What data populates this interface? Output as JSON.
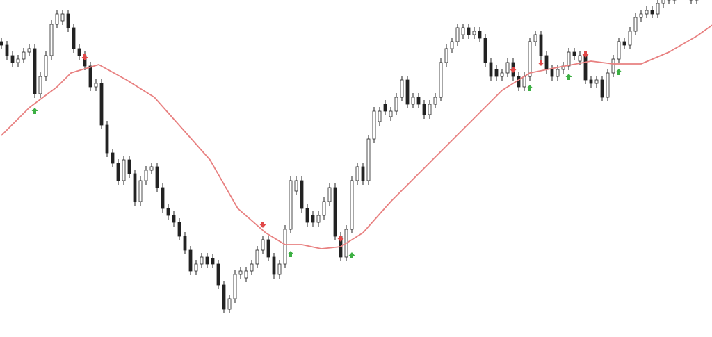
{
  "chart_data": {
    "type": "candlestick",
    "title": "",
    "xlabel": "",
    "ylabel": "",
    "ylim": [
      -5,
      480
    ],
    "grid": false,
    "colors": {
      "up_fill": "#ffffff",
      "down_fill": "#222222",
      "wick": "#222222",
      "ma": "#e88080",
      "buy": "#3cb043",
      "sell": "#e04848"
    },
    "open": [
      420,
      415,
      400,
      390,
      395,
      405,
      410,
      345,
      370,
      400,
      445,
      450,
      460,
      440,
      410,
      400,
      385,
      355,
      360,
      300,
      260,
      245,
      220,
      250,
      230,
      190,
      220,
      235,
      240,
      210,
      180,
      170,
      160,
      140,
      120,
      90,
      100,
      110,
      108,
      100,
      70,
      35,
      50,
      85,
      80,
      90,
      100,
      120,
      135,
      110,
      85,
      100,
      150,
      205,
      220,
      180,
      170,
      160,
      170,
      190,
      210,
      140,
      110,
      150,
      220,
      240,
      220,
      280,
      305,
      330,
      312,
      320,
      340,
      365,
      330,
      340,
      330,
      315,
      330,
      340,
      390,
      410,
      420,
      430,
      440,
      430,
      435,
      425,
      390,
      380,
      370,
      375,
      390,
      370,
      355,
      370,
      420,
      430,
      400,
      380,
      370,
      380,
      385,
      405,
      392,
      400,
      365,
      360,
      365,
      340,
      375,
      395,
      420,
      415,
      435,
      455,
      460,
      465,
      460,
      475,
      485,
      480,
      490,
      492,
      500,
      480
    ],
    "high": [
      426,
      421,
      406,
      401,
      411,
      416,
      416,
      376,
      406,
      451,
      466,
      466,
      466,
      446,
      416,
      406,
      391,
      366,
      366,
      306,
      266,
      251,
      256,
      256,
      236,
      226,
      241,
      246,
      246,
      216,
      186,
      176,
      166,
      146,
      126,
      106,
      116,
      116,
      114,
      106,
      76,
      56,
      91,
      96,
      96,
      106,
      126,
      141,
      141,
      116,
      106,
      156,
      226,
      226,
      226,
      186,
      176,
      176,
      196,
      216,
      216,
      146,
      156,
      226,
      246,
      246,
      286,
      326,
      326,
      336,
      326,
      346,
      371,
      371,
      346,
      346,
      336,
      336,
      346,
      396,
      416,
      426,
      446,
      446,
      446,
      441,
      441,
      431,
      396,
      386,
      381,
      396,
      396,
      376,
      376,
      426,
      436,
      436,
      406,
      386,
      386,
      391,
      411,
      411,
      406,
      406,
      371,
      371,
      371,
      381,
      401,
      426,
      426,
      441,
      461,
      466,
      471,
      471,
      481,
      491,
      491,
      496,
      506,
      506,
      506,
      506
    ],
    "low": [
      409,
      394,
      384,
      384,
      389,
      399,
      339,
      339,
      364,
      394,
      439,
      444,
      434,
      404,
      394,
      379,
      349,
      349,
      294,
      254,
      239,
      214,
      214,
      224,
      184,
      184,
      214,
      229,
      204,
      174,
      164,
      154,
      134,
      114,
      84,
      84,
      94,
      94,
      94,
      64,
      29,
      29,
      44,
      79,
      74,
      84,
      94,
      114,
      104,
      79,
      79,
      94,
      144,
      199,
      174,
      154,
      154,
      154,
      164,
      184,
      134,
      104,
      104,
      144,
      214,
      214,
      214,
      274,
      299,
      314,
      306,
      314,
      334,
      324,
      324,
      324,
      309,
      309,
      324,
      334,
      384,
      404,
      414,
      424,
      424,
      424,
      419,
      384,
      364,
      364,
      364,
      369,
      364,
      349,
      349,
      364,
      414,
      394,
      374,
      364,
      364,
      374,
      379,
      394,
      386,
      359,
      354,
      354,
      334,
      334,
      369,
      389,
      409,
      409,
      429,
      449,
      454,
      454,
      454,
      469,
      474,
      474,
      484,
      486,
      474,
      474
    ],
    "close": [
      415,
      400,
      390,
      395,
      405,
      410,
      345,
      370,
      400,
      445,
      460,
      460,
      440,
      410,
      400,
      385,
      355,
      360,
      300,
      260,
      245,
      220,
      250,
      230,
      190,
      220,
      235,
      240,
      210,
      180,
      170,
      160,
      140,
      120,
      90,
      100,
      110,
      100,
      100,
      70,
      35,
      50,
      85,
      90,
      90,
      100,
      120,
      135,
      110,
      85,
      100,
      150,
      220,
      220,
      180,
      160,
      160,
      170,
      190,
      210,
      140,
      110,
      150,
      220,
      240,
      220,
      280,
      320,
      320,
      320,
      320,
      340,
      365,
      330,
      340,
      330,
      315,
      330,
      340,
      390,
      410,
      420,
      440,
      440,
      430,
      435,
      425,
      390,
      370,
      370,
      375,
      390,
      370,
      355,
      370,
      420,
      430,
      400,
      380,
      370,
      380,
      385,
      405,
      400,
      400,
      365,
      360,
      365,
      340,
      375,
      395,
      420,
      415,
      435,
      455,
      460,
      465,
      460,
      475,
      485,
      480,
      490,
      500,
      500,
      480,
      500
    ],
    "moving_average": [
      [
        0,
        285
      ],
      [
        5,
        325
      ],
      [
        10,
        355
      ],
      [
        12.5,
        375
      ],
      [
        17.5,
        387
      ],
      [
        22.5,
        365
      ],
      [
        27.5,
        340
      ],
      [
        32.5,
        295
      ],
      [
        37.5,
        250
      ],
      [
        42.5,
        180
      ],
      [
        47.5,
        145
      ],
      [
        51,
        128
      ],
      [
        54,
        128
      ],
      [
        57.5,
        122
      ],
      [
        61,
        125
      ],
      [
        65,
        145
      ],
      [
        70,
        190
      ],
      [
        75,
        230
      ],
      [
        80,
        270
      ],
      [
        85,
        310
      ],
      [
        90,
        350
      ],
      [
        95,
        375
      ],
      [
        100,
        383
      ],
      [
        106,
        392
      ],
      [
        110,
        388
      ],
      [
        115,
        388
      ],
      [
        120,
        405
      ],
      [
        125,
        428
      ],
      [
        128,
        445
      ]
    ],
    "buy_signals": [
      [
        6,
        320
      ],
      [
        52,
        114
      ],
      [
        63,
        112
      ],
      [
        95,
        353
      ],
      [
        102,
        369
      ],
      [
        111,
        376
      ]
    ],
    "sell_signals": [
      [
        15,
        398
      ],
      [
        47,
        157
      ],
      [
        61,
        137
      ],
      [
        92,
        380
      ],
      [
        97,
        390
      ],
      [
        105,
        402
      ]
    ]
  }
}
